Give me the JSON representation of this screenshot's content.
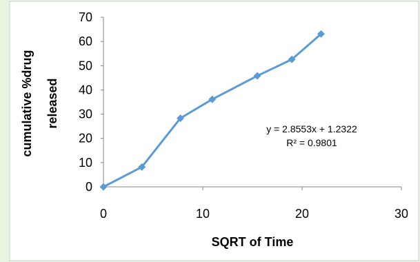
{
  "chart_data": {
    "type": "scatter",
    "title": "",
    "xlabel": "SQRT of Time",
    "ylabel_lines": [
      "cumulative %drug",
      "released"
    ],
    "xlim": [
      0,
      30
    ],
    "ylim": [
      0,
      70
    ],
    "x_ticks": [
      "0",
      "10",
      "20",
      "30"
    ],
    "y_ticks": [
      "0",
      "10",
      "20",
      "30",
      "40",
      "50",
      "60",
      "70"
    ],
    "grid": false,
    "legend": "none",
    "series": [
      {
        "x": [
          0,
          3.87,
          7.75,
          10.95,
          15.49,
          18.97,
          21.91
        ],
        "y": [
          0,
          8.2,
          28.3,
          36.1,
          45.8,
          52.6,
          63.1
        ],
        "color": "#5B9BD5",
        "marker": "diamond",
        "line": "straight"
      }
    ],
    "annotations": [
      "y = 2.8553x + 1.2322",
      "R² = 0.9801"
    ]
  }
}
